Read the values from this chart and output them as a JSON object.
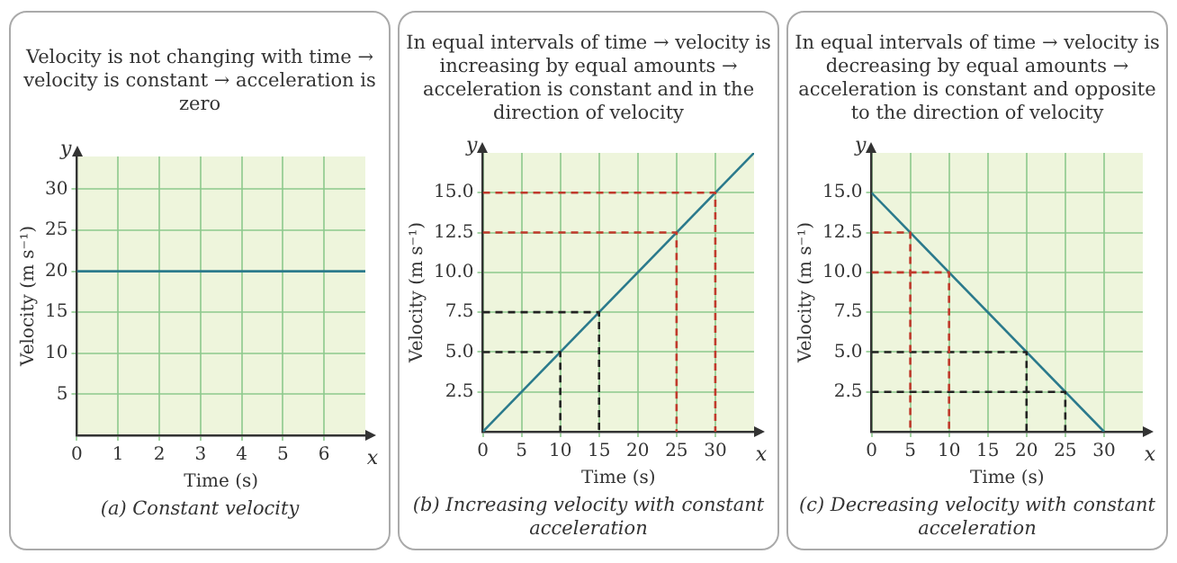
{
  "chart_data": [
    {
      "type": "line",
      "title": "Velocity is not changing with time → velocity is constant → acceleration is zero",
      "subtitle": "(a) Constant velocity",
      "xlabel": "Time (s)",
      "ylabel": "Velocity (m s⁻¹)",
      "annotations": [
        "y",
        "x"
      ],
      "grid": true,
      "xlim": [
        0,
        7
      ],
      "ylim": [
        0,
        34
      ],
      "xticks": [
        0,
        1,
        2,
        3,
        4,
        5,
        6
      ],
      "yticks": [
        5,
        10,
        15,
        20,
        25,
        30
      ],
      "series": [
        {
          "x": [
            0,
            7
          ],
          "values": [
            20,
            20
          ],
          "color": "#2b7a8c"
        }
      ]
    },
    {
      "type": "line",
      "title": "In equal intervals of time → velocity is increasing by equal amounts → acceleration is constant and in the direction of velocity",
      "subtitle": "(b) Increasing velocity with constant acceleration",
      "xlabel": "Time (s)",
      "ylabel": "Velocity (m s⁻¹)",
      "annotations": [
        "y",
        "x"
      ],
      "grid": true,
      "xlim": [
        0,
        35
      ],
      "ylim": [
        0,
        17.5
      ],
      "xticks": [
        0,
        5,
        10,
        15,
        20,
        25,
        30
      ],
      "yticks": [
        {
          "value": 2.5,
          "label": "2.5"
        },
        {
          "value": 5,
          "label": "5.0"
        },
        {
          "value": 7.5,
          "label": "7.5"
        },
        {
          "value": 10,
          "label": "10.0"
        },
        {
          "value": 12.5,
          "label": "12.5"
        },
        {
          "value": 15,
          "label": "15.0"
        }
      ],
      "series": [
        {
          "x": [
            0,
            10,
            10
          ],
          "values": [
            5,
            5,
            0
          ],
          "color": "#222222",
          "line_style": "dashed"
        },
        {
          "x": [
            0,
            15,
            15
          ],
          "values": [
            7.5,
            7.5,
            0
          ],
          "color": "#222222",
          "line_style": "dashed"
        },
        {
          "x": [
            0,
            25,
            25
          ],
          "values": [
            12.5,
            12.5,
            0
          ],
          "color": "#c0392b",
          "line_style": "dashed"
        },
        {
          "x": [
            0,
            30,
            30
          ],
          "values": [
            15,
            15,
            0
          ],
          "color": "#c0392b",
          "line_style": "dashed"
        },
        {
          "x": [
            0,
            35
          ],
          "values": [
            0,
            17.5
          ],
          "color": "#2b7a8c"
        }
      ]
    },
    {
      "type": "line",
      "title": "In equal intervals of time → velocity is decreasing by equal amounts → acceleration is constant and opposite to the direction of velocity",
      "subtitle": "(c) Decreasing velocity with constant acceleration",
      "xlabel": "Time (s)",
      "ylabel": "Velocity (m s⁻¹)",
      "annotations": [
        "y",
        "x"
      ],
      "grid": true,
      "xlim": [
        0,
        35
      ],
      "ylim": [
        0,
        17.5
      ],
      "xticks": [
        0,
        5,
        10,
        15,
        20,
        25,
        30
      ],
      "yticks": [
        {
          "value": 2.5,
          "label": "2.5"
        },
        {
          "value": 5,
          "label": "5.0"
        },
        {
          "value": 7.5,
          "label": "7.5"
        },
        {
          "value": 10,
          "label": "10.0"
        },
        {
          "value": 12.5,
          "label": "12.5"
        },
        {
          "value": 15,
          "label": "15.0"
        }
      ],
      "series": [
        {
          "x": [
            0,
            5,
            5
          ],
          "values": [
            12.5,
            12.5,
            0
          ],
          "color": "#c0392b",
          "line_style": "dashed"
        },
        {
          "x": [
            0,
            10,
            10
          ],
          "values": [
            10,
            10,
            0
          ],
          "color": "#c0392b",
          "line_style": "dashed"
        },
        {
          "x": [
            0,
            20,
            20
          ],
          "values": [
            5,
            5,
            0
          ],
          "color": "#222222",
          "line_style": "dashed"
        },
        {
          "x": [
            0,
            25,
            25
          ],
          "values": [
            2.5,
            2.5,
            0
          ],
          "color": "#222222",
          "line_style": "dashed"
        },
        {
          "x": [
            0,
            30
          ],
          "values": [
            15,
            0
          ],
          "color": "#2b7a8c"
        }
      ]
    }
  ]
}
